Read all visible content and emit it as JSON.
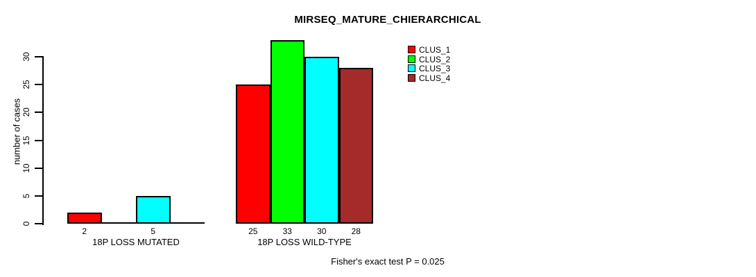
{
  "chart_data": {
    "type": "bar",
    "title": "MIRSEQ_MATURE_CHIERARCHICAL",
    "ylabel": "number of cases",
    "xlabel": "",
    "ylim": [
      0,
      33
    ],
    "yticks": [
      0,
      5,
      10,
      15,
      20,
      25,
      30
    ],
    "grid": false,
    "legend_position": "top-right",
    "background_color": "#FFFFFF",
    "axis_color": "#000000",
    "categories": [
      "18P LOSS MUTATED",
      "18P LOSS WILD-TYPE"
    ],
    "series": [
      {
        "name": "CLUS_1",
        "color": "#FF0000",
        "values": [
          2,
          25
        ]
      },
      {
        "name": "CLUS_2",
        "color": "#00FF00",
        "values": [
          0,
          33
        ]
      },
      {
        "name": "CLUS_3",
        "color": "#00FFFF",
        "values": [
          5,
          30
        ]
      },
      {
        "name": "CLUS_4",
        "color": "#A52A2A",
        "values": [
          0,
          28
        ]
      }
    ],
    "value_label_rule": "value printed under each bar, only when value > 0",
    "visible_bar_value_labels": [
      "2",
      "5",
      "25",
      "33",
      "30",
      "28"
    ],
    "annotation": "Fisher's exact test P = 0.025"
  }
}
